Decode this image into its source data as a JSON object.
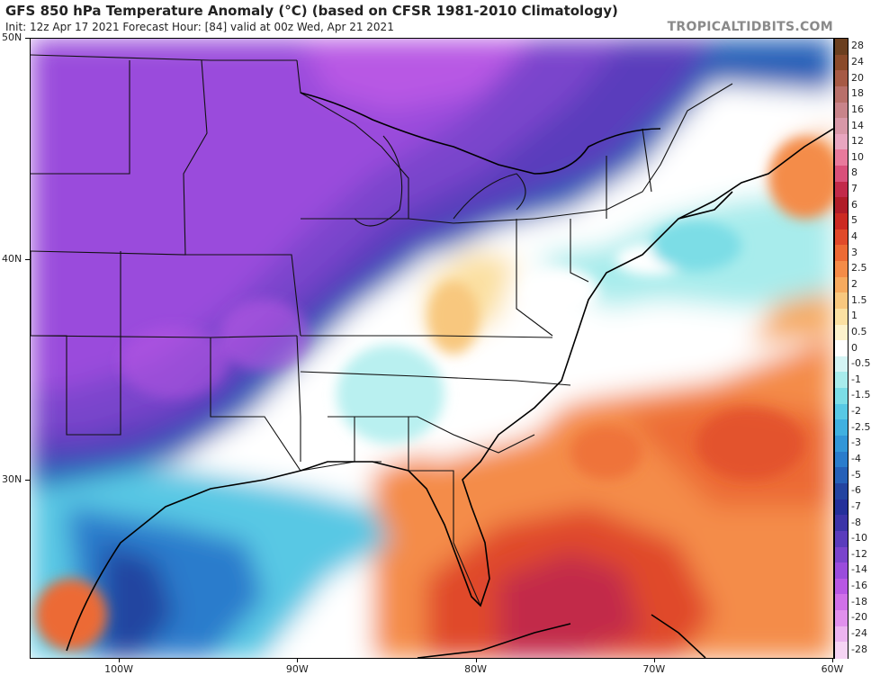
{
  "header": {
    "title": "GFS 850 hPa Temperature Anomaly (°C) (based on CFSR 1981-2010 Climatology)",
    "subtitle": "Init: 12z Apr 17 2021   Forecast Hour: [84]   valid at 00z Wed, Apr 21 2021",
    "brand": "TROPICALTIDBITS.COM"
  },
  "map": {
    "projection": "equirectangular",
    "lon_range": [
      -105,
      -60
    ],
    "lat_range": [
      22,
      50
    ],
    "lat_labels": [
      {
        "lat": 50,
        "text": "50N"
      },
      {
        "lat": 40,
        "text": "40N"
      },
      {
        "lat": 30,
        "text": "30N"
      }
    ],
    "lon_labels": [
      {
        "lon": -100,
        "text": "100W"
      },
      {
        "lon": -90,
        "text": "90W"
      },
      {
        "lon": -80,
        "text": "80W"
      },
      {
        "lon": -70,
        "text": "70W"
      },
      {
        "lon": -60,
        "text": "60W"
      }
    ]
  },
  "colorbar": [
    {
      "label": "28",
      "color": "#6b3f1f"
    },
    {
      "label": "24",
      "color": "#8a4a2a"
    },
    {
      "label": "20",
      "color": "#a65a45"
    },
    {
      "label": "18",
      "color": "#b8706a"
    },
    {
      "label": "16",
      "color": "#c8848a"
    },
    {
      "label": "14",
      "color": "#d898a8"
    },
    {
      "label": "12",
      "color": "#e8a6c0"
    },
    {
      "label": "10",
      "color": "#e87a9c"
    },
    {
      "label": "8",
      "color": "#d9507a"
    },
    {
      "label": "7",
      "color": "#c22a4a"
    },
    {
      "label": "6",
      "color": "#b01c28"
    },
    {
      "label": "5",
      "color": "#cc2a22"
    },
    {
      "label": "4",
      "color": "#e04a2a"
    },
    {
      "label": "3",
      "color": "#ec6a34"
    },
    {
      "label": "2.5",
      "color": "#f48c48"
    },
    {
      "label": "2",
      "color": "#f6aa5e"
    },
    {
      "label": "1.5",
      "color": "#f8c77e"
    },
    {
      "label": "1",
      "color": "#fbe0a2"
    },
    {
      "label": "0.5",
      "color": "#fdf2cc"
    },
    {
      "label": "0",
      "color": "#ffffff"
    },
    {
      "label": "-0.5",
      "color": "#d4f4f4"
    },
    {
      "label": "-1",
      "color": "#a8ecec"
    },
    {
      "label": "-1.5",
      "color": "#7cdde6"
    },
    {
      "label": "-2",
      "color": "#58c8e4"
    },
    {
      "label": "-2.5",
      "color": "#40b0e0"
    },
    {
      "label": "-3",
      "color": "#3296d8"
    },
    {
      "label": "-4",
      "color": "#2a7ccc"
    },
    {
      "label": "-5",
      "color": "#2560b8"
    },
    {
      "label": "-6",
      "color": "#2344a0"
    },
    {
      "label": "-7",
      "color": "#24309a"
    },
    {
      "label": "-8",
      "color": "#3c34a8"
    },
    {
      "label": "-10",
      "color": "#5a3cbc"
    },
    {
      "label": "-12",
      "color": "#7a44cc"
    },
    {
      "label": "-14",
      "color": "#9a4cdc"
    },
    {
      "label": "-16",
      "color": "#b858e4"
    },
    {
      "label": "-18",
      "color": "#d070e8"
    },
    {
      "label": "-20",
      "color": "#e090ec"
    },
    {
      "label": "-24",
      "color": "#ecb4f0"
    },
    {
      "label": "-28",
      "color": "#f6d4f4"
    }
  ],
  "colors": {
    "cold_core": "#7a44cc",
    "cold_edge": "#2560b8",
    "neutral": "#ffffff",
    "warm": "#ec6a34",
    "warm_core": "#c22a4a",
    "boundary": "#111111"
  }
}
